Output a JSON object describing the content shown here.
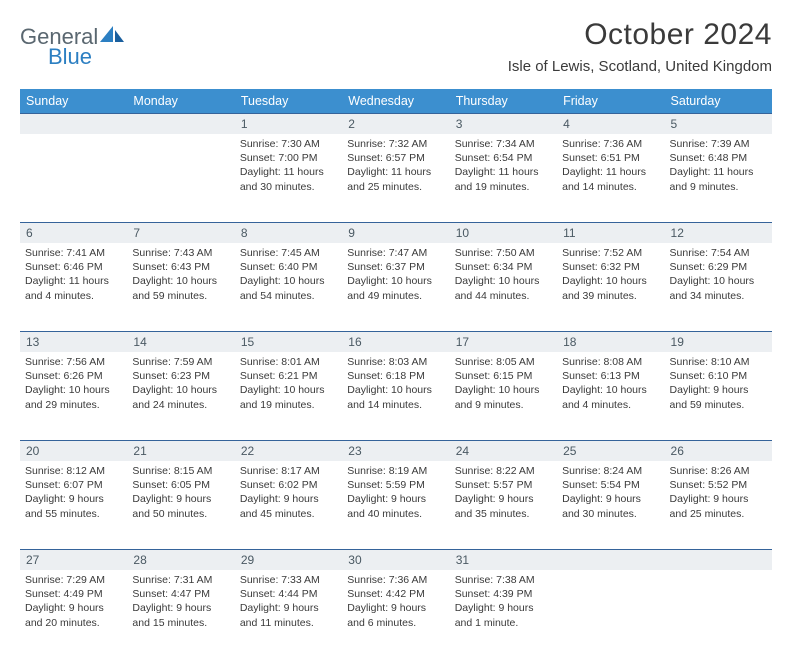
{
  "brand": {
    "word1": "General",
    "word2": "Blue"
  },
  "title": "October 2024",
  "location": "Isle of Lewis, Scotland, United Kingdom",
  "colors": {
    "header_bg": "#3c8fcf",
    "header_text": "#ffffff",
    "daynum_bg": "#eceff2",
    "daynum_text": "#4a5963",
    "row_border": "#35639a",
    "brand_gray": "#5a6770",
    "brand_blue": "#2c7fc2"
  },
  "weekdays": [
    "Sunday",
    "Monday",
    "Tuesday",
    "Wednesday",
    "Thursday",
    "Friday",
    "Saturday"
  ],
  "weeks": [
    [
      null,
      null,
      {
        "n": "1",
        "sr": "7:30 AM",
        "ss": "7:00 PM",
        "dl": "11 hours and 30 minutes."
      },
      {
        "n": "2",
        "sr": "7:32 AM",
        "ss": "6:57 PM",
        "dl": "11 hours and 25 minutes."
      },
      {
        "n": "3",
        "sr": "7:34 AM",
        "ss": "6:54 PM",
        "dl": "11 hours and 19 minutes."
      },
      {
        "n": "4",
        "sr": "7:36 AM",
        "ss": "6:51 PM",
        "dl": "11 hours and 14 minutes."
      },
      {
        "n": "5",
        "sr": "7:39 AM",
        "ss": "6:48 PM",
        "dl": "11 hours and 9 minutes."
      }
    ],
    [
      {
        "n": "6",
        "sr": "7:41 AM",
        "ss": "6:46 PM",
        "dl": "11 hours and 4 minutes."
      },
      {
        "n": "7",
        "sr": "7:43 AM",
        "ss": "6:43 PM",
        "dl": "10 hours and 59 minutes."
      },
      {
        "n": "8",
        "sr": "7:45 AM",
        "ss": "6:40 PM",
        "dl": "10 hours and 54 minutes."
      },
      {
        "n": "9",
        "sr": "7:47 AM",
        "ss": "6:37 PM",
        "dl": "10 hours and 49 minutes."
      },
      {
        "n": "10",
        "sr": "7:50 AM",
        "ss": "6:34 PM",
        "dl": "10 hours and 44 minutes."
      },
      {
        "n": "11",
        "sr": "7:52 AM",
        "ss": "6:32 PM",
        "dl": "10 hours and 39 minutes."
      },
      {
        "n": "12",
        "sr": "7:54 AM",
        "ss": "6:29 PM",
        "dl": "10 hours and 34 minutes."
      }
    ],
    [
      {
        "n": "13",
        "sr": "7:56 AM",
        "ss": "6:26 PM",
        "dl": "10 hours and 29 minutes."
      },
      {
        "n": "14",
        "sr": "7:59 AM",
        "ss": "6:23 PM",
        "dl": "10 hours and 24 minutes."
      },
      {
        "n": "15",
        "sr": "8:01 AM",
        "ss": "6:21 PM",
        "dl": "10 hours and 19 minutes."
      },
      {
        "n": "16",
        "sr": "8:03 AM",
        "ss": "6:18 PM",
        "dl": "10 hours and 14 minutes."
      },
      {
        "n": "17",
        "sr": "8:05 AM",
        "ss": "6:15 PM",
        "dl": "10 hours and 9 minutes."
      },
      {
        "n": "18",
        "sr": "8:08 AM",
        "ss": "6:13 PM",
        "dl": "10 hours and 4 minutes."
      },
      {
        "n": "19",
        "sr": "8:10 AM",
        "ss": "6:10 PM",
        "dl": "9 hours and 59 minutes."
      }
    ],
    [
      {
        "n": "20",
        "sr": "8:12 AM",
        "ss": "6:07 PM",
        "dl": "9 hours and 55 minutes."
      },
      {
        "n": "21",
        "sr": "8:15 AM",
        "ss": "6:05 PM",
        "dl": "9 hours and 50 minutes."
      },
      {
        "n": "22",
        "sr": "8:17 AM",
        "ss": "6:02 PM",
        "dl": "9 hours and 45 minutes."
      },
      {
        "n": "23",
        "sr": "8:19 AM",
        "ss": "5:59 PM",
        "dl": "9 hours and 40 minutes."
      },
      {
        "n": "24",
        "sr": "8:22 AM",
        "ss": "5:57 PM",
        "dl": "9 hours and 35 minutes."
      },
      {
        "n": "25",
        "sr": "8:24 AM",
        "ss": "5:54 PM",
        "dl": "9 hours and 30 minutes."
      },
      {
        "n": "26",
        "sr": "8:26 AM",
        "ss": "5:52 PM",
        "dl": "9 hours and 25 minutes."
      }
    ],
    [
      {
        "n": "27",
        "sr": "7:29 AM",
        "ss": "4:49 PM",
        "dl": "9 hours and 20 minutes."
      },
      {
        "n": "28",
        "sr": "7:31 AM",
        "ss": "4:47 PM",
        "dl": "9 hours and 15 minutes."
      },
      {
        "n": "29",
        "sr": "7:33 AM",
        "ss": "4:44 PM",
        "dl": "9 hours and 11 minutes."
      },
      {
        "n": "30",
        "sr": "7:36 AM",
        "ss": "4:42 PM",
        "dl": "9 hours and 6 minutes."
      },
      {
        "n": "31",
        "sr": "7:38 AM",
        "ss": "4:39 PM",
        "dl": "9 hours and 1 minute."
      },
      null,
      null
    ]
  ],
  "labels": {
    "sunrise": "Sunrise:",
    "sunset": "Sunset:",
    "daylight": "Daylight:"
  },
  "table": {
    "columns": 7,
    "col_width_pct": 14.285,
    "header_fontsize": 12.5,
    "daynum_fontsize": 12,
    "body_fontsize": 10.5
  }
}
